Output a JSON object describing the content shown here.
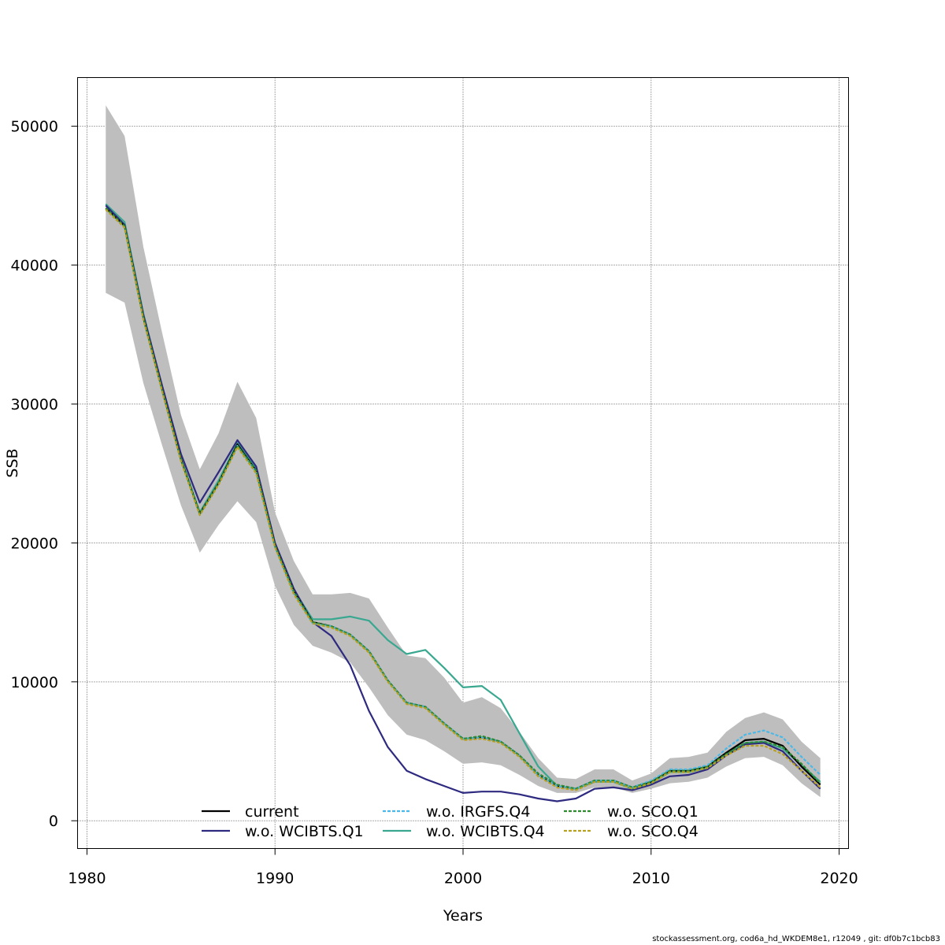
{
  "chart_data": {
    "type": "line",
    "title": "",
    "xlabel": "Years",
    "ylabel": "SSB",
    "xlim": [
      1979.5,
      2020.5
    ],
    "ylim": [
      -2000,
      53500
    ],
    "x_ticks": [
      1980,
      1990,
      2000,
      2010,
      2020
    ],
    "y_ticks": [
      0,
      10000,
      20000,
      30000,
      40000,
      50000
    ],
    "grid": true,
    "legend_position": "bottom-center",
    "x": [
      1981,
      1982,
      1983,
      1984,
      1985,
      1986,
      1987,
      1988,
      1989,
      1990,
      1991,
      1992,
      1993,
      1994,
      1995,
      1996,
      1997,
      1998,
      1999,
      2000,
      2001,
      2002,
      2003,
      2004,
      2005,
      2006,
      2007,
      2008,
      2009,
      2010,
      2011,
      2012,
      2013,
      2014,
      2015,
      2016,
      2017,
      2018,
      2019
    ],
    "confidence_band": {
      "color": "#bebebe",
      "lower": [
        38000,
        37300,
        31500,
        27000,
        22700,
        19300,
        21300,
        23000,
        21500,
        16900,
        14100,
        12600,
        12100,
        11400,
        9600,
        7600,
        6200,
        5800,
        5000,
        4100,
        4200,
        4000,
        3300,
        2500,
        2000,
        2000,
        2400,
        2400,
        2000,
        2300,
        2700,
        2800,
        3100,
        3900,
        4500,
        4600,
        4000,
        2700,
        1700
      ],
      "upper": [
        51500,
        49300,
        41300,
        35100,
        29200,
        25300,
        27900,
        31600,
        29000,
        22200,
        18700,
        16300,
        16300,
        16400,
        16000,
        13900,
        11900,
        11700,
        10300,
        8500,
        8900,
        8100,
        6400,
        4500,
        3100,
        3000,
        3700,
        3700,
        2900,
        3400,
        4500,
        4600,
        4900,
        6400,
        7400,
        7800,
        7300,
        5700,
        4500
      ]
    },
    "series": [
      {
        "name": "current",
        "color": "#000000",
        "dash": "",
        "values": [
          44100,
          42800,
          36200,
          31000,
          26000,
          22100,
          24300,
          27100,
          25200,
          19800,
          16500,
          14300,
          14000,
          13400,
          12200,
          10100,
          8500,
          8200,
          7000,
          5900,
          6000,
          5700,
          4700,
          3300,
          2500,
          2300,
          2900,
          2900,
          2400,
          2800,
          3600,
          3600,
          3900,
          4900,
          5800,
          5900,
          5400,
          3900,
          2600
        ]
      },
      {
        "name": "w.o. WCIBTS.Q1",
        "color": "#2e2a80",
        "dash": "",
        "values": [
          44300,
          42900,
          36400,
          31300,
          26400,
          22900,
          25100,
          27400,
          25500,
          20000,
          16700,
          14300,
          13300,
          11200,
          7900,
          5300,
          3600,
          3000,
          2500,
          2000,
          2100,
          2100,
          1900,
          1600,
          1400,
          1600,
          2300,
          2400,
          2200,
          2600,
          3200,
          3300,
          3700,
          4700,
          5500,
          5600,
          5000,
          3600,
          2300
        ]
      },
      {
        "name": "w.o. IRGFS.Q4",
        "color": "#4cb8e8",
        "dash": "4,2",
        "values": [
          44000,
          42700,
          36100,
          30900,
          25900,
          22000,
          24200,
          27000,
          25100,
          19700,
          16400,
          14200,
          14000,
          13400,
          12200,
          10100,
          8500,
          8200,
          7000,
          5900,
          6000,
          5700,
          4700,
          3300,
          2500,
          2300,
          2900,
          2900,
          2400,
          2900,
          3700,
          3700,
          4000,
          5200,
          6200,
          6500,
          6000,
          4600,
          3300
        ]
      },
      {
        "name": "w.o. WCIBTS.Q4",
        "color": "#3aa890",
        "dash": "",
        "values": [
          44400,
          43100,
          36500,
          31200,
          26100,
          22200,
          24500,
          27200,
          25300,
          19900,
          16600,
          14500,
          14500,
          14700,
          14400,
          13000,
          12000,
          12300,
          11000,
          9600,
          9700,
          8700,
          6300,
          3900,
          2500,
          2300,
          2800,
          2800,
          2300,
          2700,
          3500,
          3500,
          3800,
          4800,
          5600,
          5700,
          5200,
          4000,
          2800
        ]
      },
      {
        "name": "w.o. SCO.Q1",
        "color": "#2f8a30",
        "dash": "4,2",
        "values": [
          44100,
          42800,
          36200,
          31000,
          26000,
          22100,
          24300,
          27000,
          25200,
          19800,
          16500,
          14300,
          14000,
          13400,
          12200,
          10100,
          8500,
          8200,
          7000,
          5900,
          6100,
          5700,
          4700,
          3400,
          2600,
          2300,
          2900,
          2900,
          2400,
          2800,
          3600,
          3600,
          3900,
          4800,
          5600,
          5700,
          5300,
          4100,
          2700
        ]
      },
      {
        "name": "w.o. SCO.Q4",
        "color": "#b8a020",
        "dash": "4,2",
        "values": [
          44000,
          42700,
          36100,
          30900,
          25900,
          22000,
          24200,
          26900,
          25000,
          19700,
          16300,
          14200,
          13900,
          13300,
          12100,
          10000,
          8400,
          8100,
          6900,
          5800,
          5900,
          5600,
          4600,
          3200,
          2400,
          2200,
          2800,
          2800,
          2300,
          2700,
          3500,
          3500,
          3800,
          4700,
          5400,
          5400,
          4800,
          3600,
          2400
        ]
      }
    ],
    "legend": [
      {
        "label": "current",
        "color": "#000000"
      },
      {
        "label": "w.o. WCIBTS.Q1",
        "color": "#2e2a80"
      },
      {
        "label": "w.o. IRGFS.Q4",
        "color": "#4cb8e8"
      },
      {
        "label": "w.o. WCIBTS.Q4",
        "color": "#3aa890"
      },
      {
        "label": "w.o. SCO.Q1",
        "color": "#2f8a30"
      },
      {
        "label": "w.o. SCO.Q4",
        "color": "#b8a020"
      }
    ]
  },
  "footer": {
    "text": "stockassessment.org, cod6a_hd_WKDEM8e1, r12049 , git: df0b7c1bcb83"
  }
}
